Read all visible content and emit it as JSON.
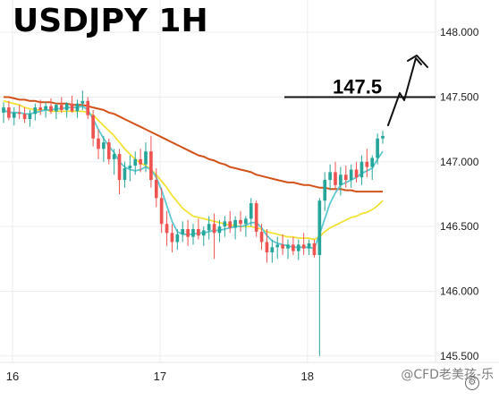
{
  "chart_data": {
    "type": "candlestick",
    "title": "USDJPY 1H",
    "x_tick_labels": [
      "16",
      "17",
      "18"
    ],
    "y_tick_labels": [
      "148.000",
      "147.500",
      "147.000",
      "146.500",
      "146.000",
      "145.500"
    ],
    "ylim": [
      145.45,
      148.25
    ],
    "grid": true,
    "annotation": {
      "label": "147.5",
      "level": 147.5
    },
    "colors": {
      "up": "#26a69a",
      "down": "#ef5350",
      "ma_fast": "#5ec8d0",
      "ma_mid": "#f2e237",
      "ma_slow": "#d2521a",
      "grid": "#eeeeee",
      "annotation": "#111111"
    },
    "candles": [
      [
        147.38,
        147.46,
        147.3,
        147.42
      ],
      [
        147.42,
        147.47,
        147.32,
        147.34
      ],
      [
        147.34,
        147.42,
        147.28,
        147.38
      ],
      [
        147.38,
        147.44,
        147.33,
        147.37
      ],
      [
        147.37,
        147.42,
        147.3,
        147.33
      ],
      [
        147.33,
        147.4,
        147.27,
        147.37
      ],
      [
        147.37,
        147.45,
        147.32,
        147.42
      ],
      [
        147.42,
        147.48,
        147.36,
        147.4
      ],
      [
        147.4,
        147.46,
        147.34,
        147.43
      ],
      [
        147.43,
        147.49,
        147.37,
        147.39
      ],
      [
        147.39,
        147.45,
        147.33,
        147.44
      ],
      [
        147.44,
        147.5,
        147.38,
        147.4
      ],
      [
        147.4,
        147.46,
        147.34,
        147.45
      ],
      [
        147.45,
        147.51,
        147.38,
        147.39
      ],
      [
        147.39,
        147.48,
        147.34,
        147.45
      ],
      [
        147.45,
        147.55,
        147.4,
        147.47
      ],
      [
        147.47,
        147.5,
        147.33,
        147.36
      ],
      [
        147.36,
        147.4,
        147.12,
        147.18
      ],
      [
        147.18,
        147.25,
        147.02,
        147.1
      ],
      [
        147.1,
        147.2,
        147.0,
        147.15
      ],
      [
        147.15,
        147.18,
        146.98,
        147.02
      ],
      [
        147.02,
        147.1,
        146.9,
        147.06
      ],
      [
        147.06,
        147.1,
        146.75,
        146.86
      ],
      [
        146.86,
        147.0,
        146.8,
        146.95
      ],
      [
        146.95,
        147.05,
        146.85,
        146.97
      ],
      [
        146.97,
        147.08,
        146.9,
        147.02
      ],
      [
        147.02,
        147.1,
        146.92,
        146.98
      ],
      [
        146.98,
        147.15,
        146.92,
        147.08
      ],
      [
        147.08,
        147.2,
        146.8,
        146.86
      ],
      [
        146.86,
        146.95,
        146.65,
        146.72
      ],
      [
        146.72,
        146.8,
        146.45,
        146.52
      ],
      [
        146.52,
        146.62,
        146.35,
        146.45
      ],
      [
        146.45,
        146.52,
        146.3,
        146.38
      ],
      [
        146.38,
        146.48,
        146.32,
        146.44
      ],
      [
        146.44,
        146.54,
        146.38,
        146.48
      ],
      [
        146.48,
        146.55,
        146.35,
        146.42
      ],
      [
        146.42,
        146.52,
        146.36,
        146.48
      ],
      [
        146.48,
        146.56,
        146.4,
        146.43
      ],
      [
        146.43,
        146.5,
        146.35,
        146.47
      ],
      [
        146.47,
        146.58,
        146.4,
        146.52
      ],
      [
        146.52,
        146.6,
        146.25,
        146.45
      ],
      [
        146.45,
        146.55,
        146.38,
        146.5
      ],
      [
        146.5,
        146.58,
        146.42,
        146.54
      ],
      [
        146.54,
        146.62,
        146.45,
        146.49
      ],
      [
        146.49,
        146.58,
        146.4,
        146.55
      ],
      [
        146.55,
        146.62,
        146.46,
        146.52
      ],
      [
        146.52,
        146.58,
        146.42,
        146.56
      ],
      [
        146.56,
        146.72,
        146.5,
        146.68
      ],
      [
        146.68,
        146.7,
        146.42,
        146.46
      ],
      [
        146.46,
        146.52,
        146.32,
        146.38
      ],
      [
        146.38,
        146.48,
        146.22,
        146.3
      ],
      [
        146.3,
        146.4,
        146.22,
        146.34
      ],
      [
        146.34,
        146.42,
        146.25,
        146.36
      ],
      [
        146.36,
        146.44,
        146.28,
        146.33
      ],
      [
        146.33,
        146.4,
        146.25,
        146.36
      ],
      [
        146.36,
        146.42,
        146.28,
        146.31
      ],
      [
        146.31,
        146.4,
        146.24,
        146.36
      ],
      [
        146.36,
        146.45,
        146.28,
        146.33
      ],
      [
        146.33,
        146.4,
        146.28,
        146.37
      ],
      [
        146.37,
        146.4,
        146.26,
        146.28
      ],
      [
        146.28,
        146.72,
        145.5,
        146.7
      ],
      [
        146.7,
        146.92,
        146.62,
        146.86
      ],
      [
        146.86,
        146.98,
        146.78,
        146.92
      ],
      [
        146.92,
        147.0,
        146.78,
        146.82
      ],
      [
        146.82,
        146.96,
        146.74,
        146.9
      ],
      [
        146.9,
        146.97,
        146.8,
        146.86
      ],
      [
        146.86,
        146.98,
        146.8,
        146.94
      ],
      [
        146.94,
        147.0,
        146.84,
        146.88
      ],
      [
        146.88,
        147.05,
        146.82,
        147.0
      ],
      [
        147.0,
        147.1,
        146.88,
        146.96
      ],
      [
        146.96,
        147.05,
        146.86,
        147.03
      ],
      [
        147.03,
        147.22,
        146.98,
        147.18
      ],
      [
        147.18,
        147.24,
        147.14,
        147.2
      ]
    ],
    "ma_fast": [
      147.4,
      147.38,
      147.38,
      147.38,
      147.37,
      147.37,
      147.38,
      147.39,
      147.4,
      147.4,
      147.41,
      147.41,
      147.42,
      147.42,
      147.42,
      147.43,
      147.4,
      147.33,
      147.25,
      147.18,
      147.12,
      147.07,
      147.0,
      146.96,
      146.94,
      146.93,
      146.94,
      146.96,
      146.94,
      146.88,
      146.78,
      146.66,
      146.54,
      146.46,
      146.44,
      146.44,
      146.44,
      146.45,
      146.45,
      146.46,
      146.47,
      146.47,
      146.48,
      146.49,
      146.5,
      146.5,
      146.51,
      146.53,
      146.53,
      146.49,
      146.43,
      146.39,
      146.37,
      146.36,
      146.35,
      146.34,
      146.34,
      146.34,
      146.34,
      146.33,
      146.44,
      146.56,
      146.68,
      146.76,
      146.82,
      146.84,
      146.86,
      146.88,
      146.91,
      146.93,
      146.95,
      147.02,
      147.08
    ],
    "ma_mid": [
      147.47,
      147.46,
      147.45,
      147.44,
      147.42,
      147.41,
      147.4,
      147.4,
      147.4,
      147.39,
      147.39,
      147.39,
      147.39,
      147.39,
      147.39,
      147.39,
      147.38,
      147.36,
      147.32,
      147.28,
      147.24,
      147.2,
      147.15,
      147.1,
      147.06,
      147.02,
      146.99,
      146.97,
      146.94,
      146.9,
      146.85,
      146.8,
      146.74,
      146.69,
      146.64,
      146.61,
      146.58,
      146.57,
      146.56,
      146.55,
      146.54,
      146.53,
      146.52,
      146.51,
      146.51,
      146.5,
      146.5,
      146.5,
      146.49,
      146.48,
      146.46,
      146.45,
      146.44,
      146.43,
      146.42,
      146.42,
      146.41,
      146.41,
      146.41,
      146.4,
      146.42,
      146.46,
      146.49,
      146.51,
      146.53,
      146.55,
      146.57,
      146.58,
      146.6,
      146.61,
      146.63,
      146.66,
      146.7
    ],
    "ma_slow": [
      147.5,
      147.5,
      147.49,
      147.48,
      147.48,
      147.47,
      147.47,
      147.46,
      147.46,
      147.46,
      147.45,
      147.45,
      147.45,
      147.44,
      147.44,
      147.44,
      147.43,
      147.42,
      147.41,
      147.4,
      147.38,
      147.37,
      147.35,
      147.33,
      147.31,
      147.29,
      147.27,
      147.25,
      147.23,
      147.21,
      147.19,
      147.17,
      147.15,
      147.13,
      147.11,
      147.09,
      147.07,
      147.05,
      147.04,
      147.02,
      147.01,
      146.99,
      146.98,
      146.96,
      146.95,
      146.94,
      146.93,
      146.92,
      146.9,
      146.89,
      146.88,
      146.87,
      146.86,
      146.85,
      146.84,
      146.84,
      146.83,
      146.82,
      146.82,
      146.81,
      146.8,
      146.8,
      146.79,
      146.79,
      146.79,
      146.78,
      146.78,
      146.77,
      146.77,
      146.77,
      146.77,
      146.77,
      146.77
    ]
  },
  "watermark": "@CFD老美孩-乐",
  "settings_icon": "gear-icon"
}
